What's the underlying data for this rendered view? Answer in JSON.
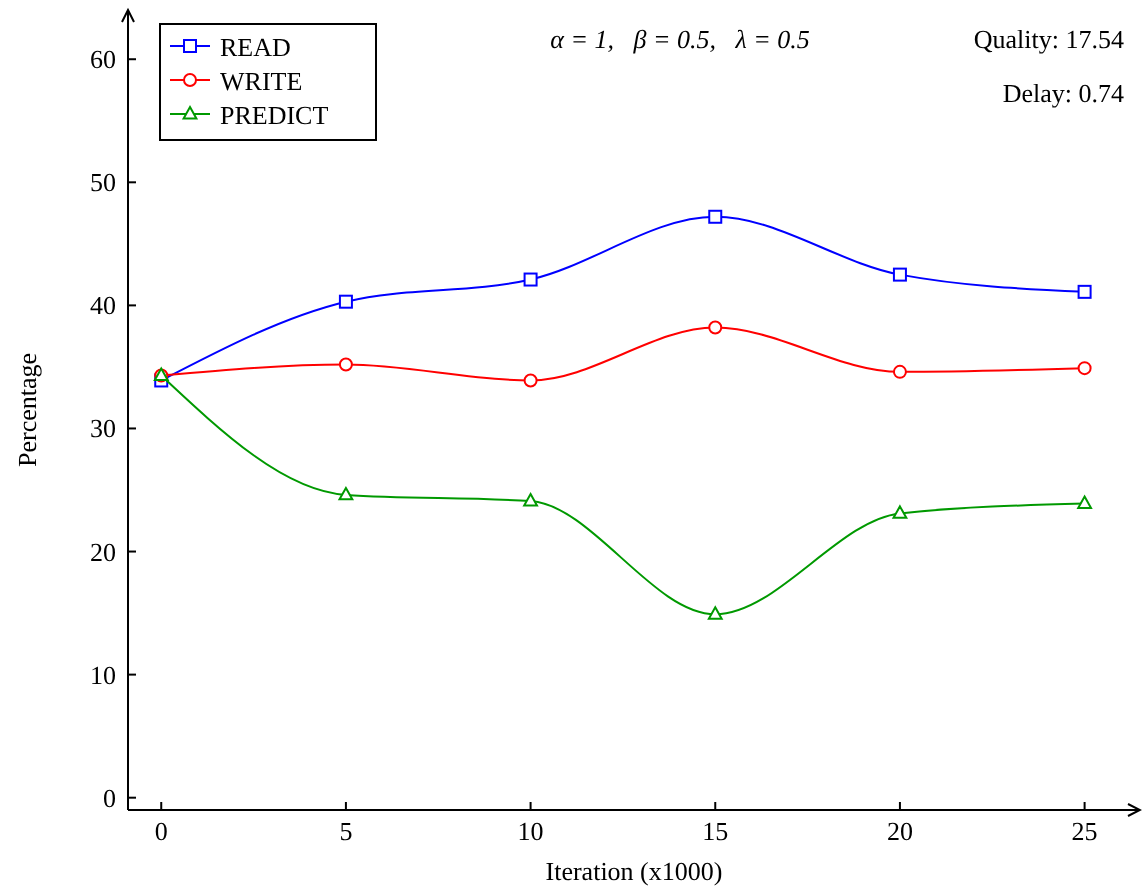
{
  "chart_data": {
    "type": "line",
    "xlabel": "Iteration (x1000)",
    "ylabel": "Percentage",
    "x": [
      0,
      5,
      10,
      15,
      20,
      25
    ],
    "xlim": [
      -0.9,
      26.5
    ],
    "ylim": [
      -1,
      64
    ],
    "xticks": [
      0,
      5,
      10,
      15,
      20,
      25
    ],
    "yticks": [
      0,
      10,
      20,
      30,
      40,
      50,
      60
    ],
    "grid": false,
    "legend": "top left",
    "annotations": [
      "α = 1,   β = 0.5,   λ = 0.5",
      "Quality: 17.54",
      "Delay: 0.74"
    ],
    "series": [
      {
        "name": "READ",
        "color": "#0000ff",
        "marker": "square",
        "values": [
          33.9,
          40.3,
          42.1,
          47.2,
          42.5,
          41.1
        ]
      },
      {
        "name": "WRITE",
        "color": "#ff0000",
        "marker": "circle",
        "values": [
          34.3,
          35.2,
          33.9,
          38.2,
          34.6,
          34.9
        ]
      },
      {
        "name": "PREDICT",
        "color": "#009900",
        "marker": "triangle",
        "values": [
          34.3,
          24.6,
          24.1,
          14.9,
          23.1,
          23.9
        ]
      }
    ]
  }
}
